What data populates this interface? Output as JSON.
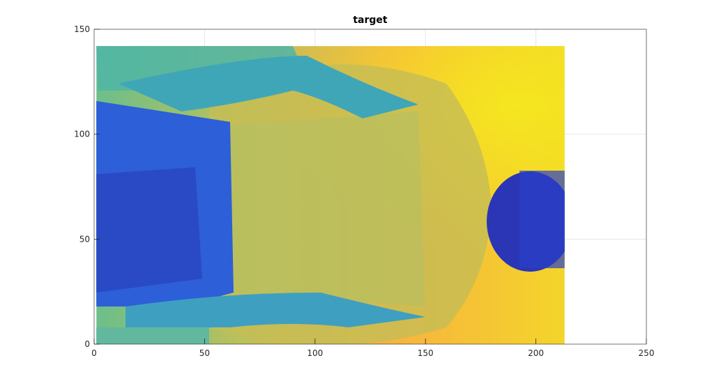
{
  "chart_data": {
    "type": "image",
    "title": "target",
    "x": [
      1,
      213
    ],
    "y": [
      0,
      142
    ],
    "xlim": [
      0,
      250
    ],
    "xticks": [
      0,
      50,
      100,
      150,
      200,
      250
    ],
    "ylim": [
      0,
      150
    ],
    "yticks": [
      0,
      50,
      100,
      150
    ],
    "grid": true
  }
}
